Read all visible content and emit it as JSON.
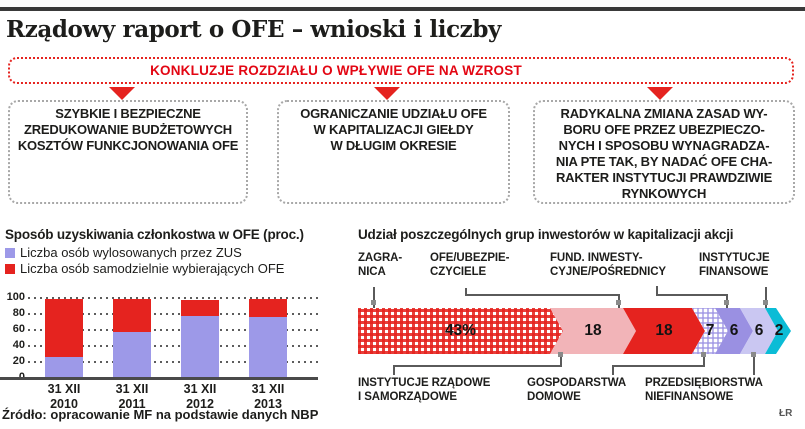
{
  "page": {
    "title": "Rządowy raport o OFE – wnioski i liczby",
    "credit": "ŁR",
    "background": "#ffffff"
  },
  "banner": {
    "label": "KONKLUZJE ROZDZIAŁU O WPŁYWIE OFE NA WZROST",
    "color": "#e30613"
  },
  "conclusion_boxes": [
    {
      "text": "SZYBKIE I BEZPIECZNE\nZREDUKOWANIE BUDŻETOWYCH\nKOSZTÓW FUNKCJONOWANIA OFE"
    },
    {
      "text": "OGRANICZANIE UDZIAŁU OFE\nW KAPITALIZACJI GIEŁDY\nW DŁUGIM OKRESIE"
    },
    {
      "text": "RADYKALNA ZMIANA ZASAD WY-\nBORU OFE PRZEZ UBEZPIECZO-\nNYCH I SPOSOBU WYNAGRADZA-\nNIA PTE TAK, BY NADAĆ OFE CHA-\nRAKTER INSTYTUCJI PRAWDZIWIE\nRYNKOWYCH"
    }
  ],
  "source": "Źródło: opracowanie MF na podstawie danych NBP",
  "chart_data": [
    {
      "type": "bar",
      "variant": "stacked-vertical",
      "title": "Sposób uzyskiwania członkostwa w OFE (proc.)",
      "categories": [
        "31 XII\n2010",
        "31 XII\n2011",
        "31 XII\n2012",
        "31 XII\n2013"
      ],
      "series": [
        {
          "name": "Liczba osób wylosowanych przez ZUS",
          "color": "#9d99e8",
          "values": [
            26,
            57,
            78,
            76
          ]
        },
        {
          "name": "Liczba osób samodzielnie wybierających OFE",
          "color": "#e5231f",
          "values": [
            72,
            41,
            20,
            22
          ]
        }
      ],
      "ylim": [
        0,
        100
      ],
      "yticks": [
        0,
        20,
        40,
        60,
        80,
        100
      ],
      "grid": true,
      "legend_position": "top"
    },
    {
      "type": "bar",
      "variant": "stacked-horizontal-arrow",
      "title": "Udział poszczególnych grup inwestorów w kapitalizacji akcji",
      "unit": "%",
      "segments": [
        {
          "label": "ZAGRANICA",
          "value": 43,
          "display": "43%",
          "style": "red-check"
        },
        {
          "label": "INSTYTUCJE RZĄDOWE I SAMORZĄDOWE",
          "value": 18,
          "display": "18",
          "style": "pink"
        },
        {
          "label": "OFE/UBEZPIECZYCIELE",
          "value": 18,
          "display": "18",
          "style": "red"
        },
        {
          "label": "GOSPODARSTWA DOMOWE",
          "value": 7,
          "display": "7",
          "style": "purple-check"
        },
        {
          "label": "FUND. INWESTYCYJNE/POŚREDNICY",
          "value": 6,
          "display": "6",
          "style": "purple"
        },
        {
          "label": "PRZEDSIĘBIORSTWA NIEFINANSOWE",
          "value": 6,
          "display": "6",
          "style": "lavender"
        },
        {
          "label": "INSTYTUCJE FINANSOWE",
          "value": 2,
          "display": "2",
          "style": "cyan"
        }
      ],
      "callouts_top": [
        "ZAGRA-\nNICA",
        "OFE/UBEZPIE-\nCZYCIELE",
        "FUND. INWESTY-\nCYJNE/POŚREDNICY",
        "INSTYTUCJE\nFINANSOWE"
      ],
      "callouts_bottom": [
        "INSTYTUCJE RZĄDOWE\nI SAMORZĄDOWE",
        "GOSPODARSTWA\nDOMOWE",
        "PRZEDSIĘBIORSTWA\nNIEFINANSOWE"
      ],
      "colors": {
        "red": "#e5231f",
        "pink": "#f2b4b8",
        "purple": "#9a90e2",
        "lavender": "#cac7f2",
        "cyan": "#0bbcd6"
      }
    }
  ]
}
